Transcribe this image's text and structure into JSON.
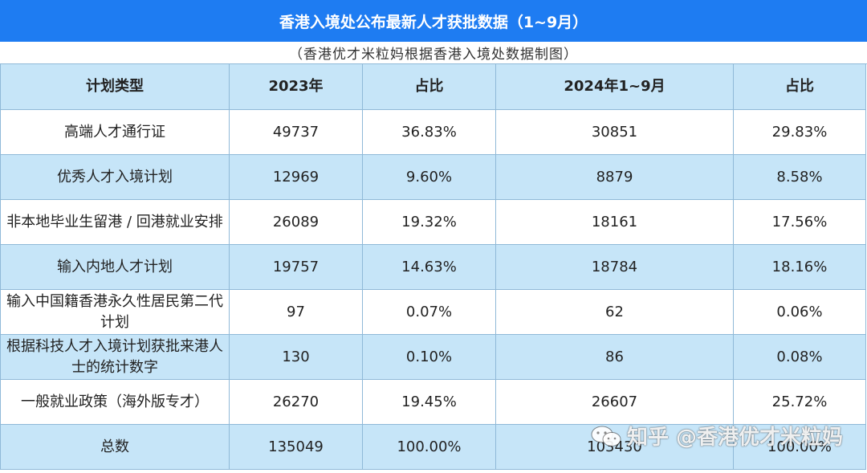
{
  "title": "香港入境处公布最新人才获批数据（1~9月）",
  "subtitle": "（香港优才米粒妈根据香港入境处数据制图）",
  "headers": [
    "计划类型",
    "2023年",
    "占比",
    "2024年1~9月",
    "占比"
  ],
  "rows": [
    {
      "type": "高端人才通行证",
      "y2023": "49737",
      "pct2023": "36.83%",
      "y2024": "30851",
      "pct2024": "29.83%"
    },
    {
      "type": "优秀人才入境计划",
      "y2023": "12969",
      "pct2023": "9.60%",
      "y2024": "8879",
      "pct2024": "8.58%"
    },
    {
      "type": "非本地毕业生留港 / 回港就业安排",
      "y2023": "26089",
      "pct2023": "19.32%",
      "y2024": "18161",
      "pct2024": "17.56%"
    },
    {
      "type": "输入内地人才计划",
      "y2023": "19757",
      "pct2023": "14.63%",
      "y2024": "18784",
      "pct2024": "18.16%"
    },
    {
      "type": "输入中国籍香港永久性居民第二代计划",
      "y2023": "97",
      "pct2023": "0.07%",
      "y2024": "62",
      "pct2024": "0.06%"
    },
    {
      "type": "根据科技人才入境计划获批来港人士的统计数字",
      "y2023": "130",
      "pct2023": "0.10%",
      "y2024": "86",
      "pct2024": "0.08%"
    },
    {
      "type": "一般就业政策（海外版专才）",
      "y2023": "26270",
      "pct2023": "19.45%",
      "y2024": "26607",
      "pct2024": "25.72%"
    },
    {
      "type": "总数",
      "y2023": "135049",
      "pct2023": "100.00%",
      "y2024": "103430",
      "pct2024": "100.00%"
    }
  ],
  "watermark": {
    "text": "知乎 @香港优才米粒妈",
    "icon": "wechat-icon"
  },
  "colors": {
    "title_bg": "#1e7cf2",
    "row_highlight": "#c6e5f8",
    "border": "#8fb9d8"
  }
}
